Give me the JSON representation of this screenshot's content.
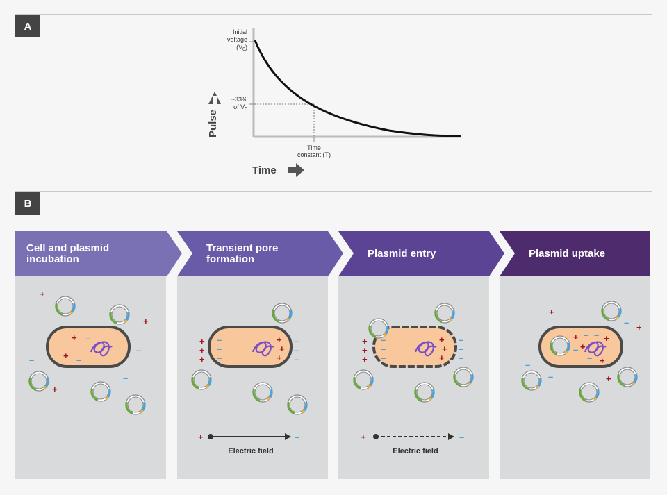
{
  "section_a": {
    "badge": "A"
  },
  "section_b": {
    "badge": "B"
  },
  "graph": {
    "y_label_1": "Initial",
    "y_label_2": "voltage",
    "y_label_3": "(V",
    "y_label_3_sub": "0",
    "y_label_3_end": ")",
    "mid_label_1": "~33%",
    "mid_label_2": "of V",
    "mid_label_2_sub": "0",
    "x_label_1": "Time",
    "x_label_2": "constant (T)",
    "y_axis_title": "Pulse",
    "x_axis_title": "Time"
  },
  "steps": [
    {
      "title": "Cell and plasmid\nincubation",
      "color": "#7c72b6"
    },
    {
      "title": "Transient pore\nformation",
      "color": "#6b5ba8"
    },
    {
      "title": "Plasmid entry",
      "color": "#5b4596"
    },
    {
      "title": "Plasmid uptake",
      "color": "#4e2c6e"
    }
  ],
  "field_label_1": "Electric field",
  "field_label_2": "Electric field",
  "signs": {
    "plus": "+",
    "minus": "–"
  },
  "colors": {
    "plus": "#a3121f",
    "minus": "#4aa3dc",
    "cell_fill": "#f8c79c",
    "cell_border": "#4a4a4a",
    "plasmid_green": "#66a83a",
    "plasmid_blue": "#4aa3dc",
    "plasmid_yellow": "#f2b133",
    "dna": "#7a4fc9"
  }
}
